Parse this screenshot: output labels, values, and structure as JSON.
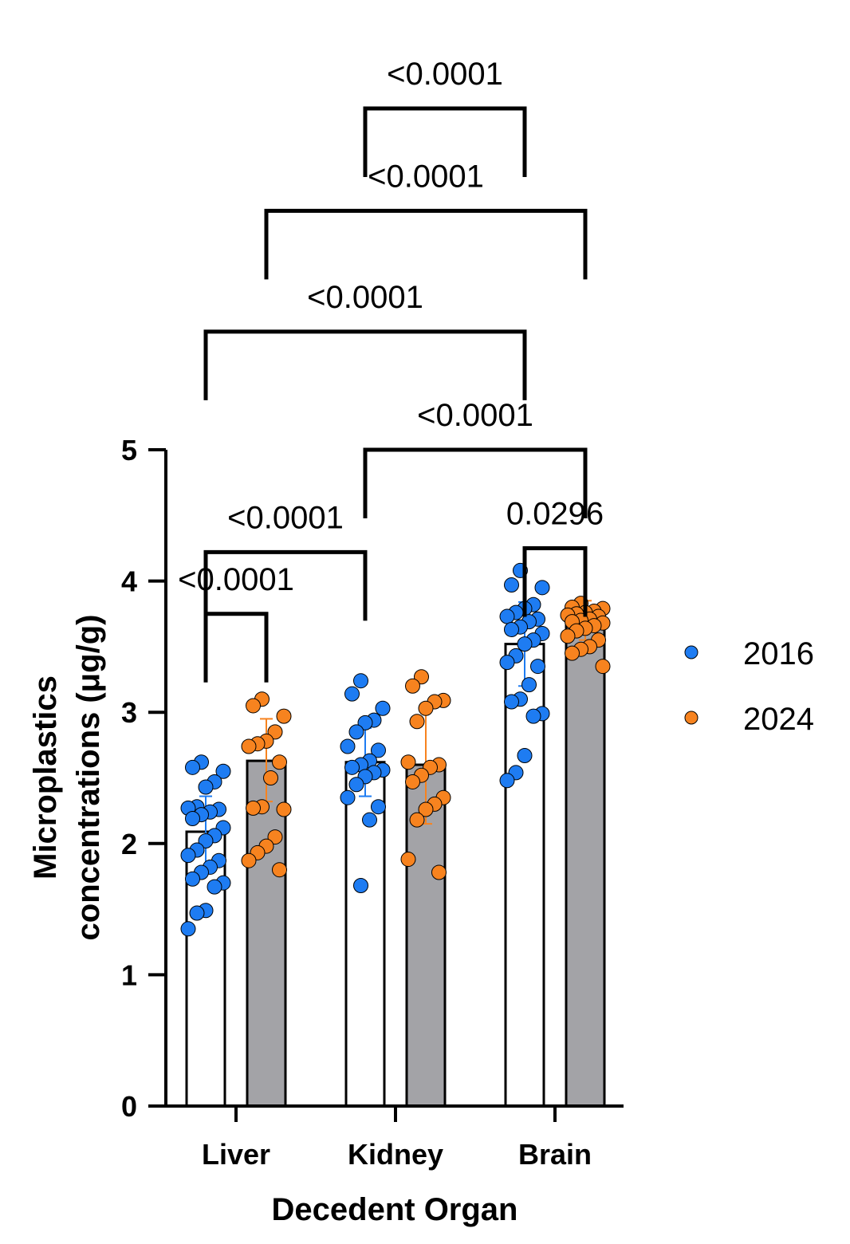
{
  "chart_data": {
    "type": "bar",
    "categories": [
      "Liver",
      "Kidney",
      "Brain"
    ],
    "xlabel": "Decedent Organ",
    "ylabel_lines": [
      "Microplastics",
      "concentrations (μg/g)"
    ],
    "ylim": [
      0,
      5
    ],
    "yticks": [
      "0",
      "1",
      "2",
      "3",
      "4",
      "5"
    ],
    "grid": false,
    "legend_position": "right",
    "series": [
      {
        "name": "2016",
        "color": "#1E7CF2",
        "bar_fill": "#FFFFFF",
        "means": [
          2.09,
          2.62,
          3.52
        ],
        "sd": [
          [
            1.82,
            2.36
          ],
          [
            2.36,
            2.88
          ],
          [
            3.2,
            3.84
          ]
        ],
        "points": [
          [
            2.62,
            2.58,
            2.55,
            2.47,
            2.43,
            2.28,
            2.27,
            2.26,
            2.24,
            2.22,
            2.19,
            2.12,
            2.06,
            2.02,
            1.95,
            1.91,
            1.87,
            1.82,
            1.78,
            1.73,
            1.7,
            1.67,
            1.49,
            1.47,
            1.35
          ],
          [
            3.24,
            3.14,
            3.03,
            2.94,
            2.92,
            2.85,
            2.74,
            2.71,
            2.63,
            2.6,
            2.58,
            2.56,
            2.54,
            2.51,
            2.45,
            2.35,
            2.28,
            2.18,
            1.68
          ],
          [
            4.08,
            3.97,
            3.95,
            3.82,
            3.79,
            3.76,
            3.73,
            3.71,
            3.69,
            3.65,
            3.63,
            3.6,
            3.55,
            3.52,
            3.43,
            3.38,
            3.35,
            3.21,
            3.1,
            3.08,
            2.99,
            2.97,
            2.67,
            2.54,
            2.48
          ]
        ]
      },
      {
        "name": "2024",
        "color": "#F7831F",
        "bar_fill": "#A3A3A7",
        "means": [
          2.63,
          2.6,
          3.7
        ],
        "sd": [
          [
            2.32,
            2.95
          ],
          [
            2.15,
            3.05
          ],
          [
            3.55,
            3.85
          ]
        ],
        "points": [
          [
            3.1,
            3.05,
            2.97,
            2.85,
            2.78,
            2.76,
            2.74,
            2.62,
            2.5,
            2.28,
            2.27,
            2.26,
            2.05,
            1.98,
            1.93,
            1.87,
            1.8
          ],
          [
            3.27,
            3.2,
            3.09,
            3.08,
            3.03,
            2.93,
            2.62,
            2.6,
            2.58,
            2.52,
            2.47,
            2.35,
            2.3,
            2.26,
            2.18,
            1.88,
            1.78
          ],
          [
            3.83,
            3.8,
            3.79,
            3.77,
            3.76,
            3.75,
            3.74,
            3.73,
            3.71,
            3.7,
            3.69,
            3.68,
            3.66,
            3.64,
            3.62,
            3.58,
            3.55,
            3.5,
            3.48,
            3.45,
            3.35
          ]
        ]
      }
    ],
    "comparisons": [
      {
        "label": "<0.0001",
        "from": [
          0,
          0
        ],
        "to": [
          0,
          1
        ],
        "level": 3.75
      },
      {
        "label": "<0.0001",
        "from": [
          0,
          0
        ],
        "to": [
          1,
          0
        ],
        "level": 4.22
      },
      {
        "label": "0.0296",
        "from": [
          2,
          0
        ],
        "to": [
          2,
          1
        ],
        "level": 4.25
      },
      {
        "label": "<0.0001",
        "from": [
          1,
          0
        ],
        "to": [
          2,
          1
        ],
        "level": 5.0
      },
      {
        "label": "<0.0001",
        "from": [
          0,
          0
        ],
        "to": [
          2,
          0
        ],
        "level": 5.9
      },
      {
        "label": "<0.0001",
        "from": [
          0,
          1
        ],
        "to": [
          2,
          1
        ],
        "level": 6.82
      },
      {
        "label": "<0.0001",
        "from": [
          1,
          0
        ],
        "to": [
          2,
          0
        ],
        "level": 7.6
      }
    ]
  }
}
